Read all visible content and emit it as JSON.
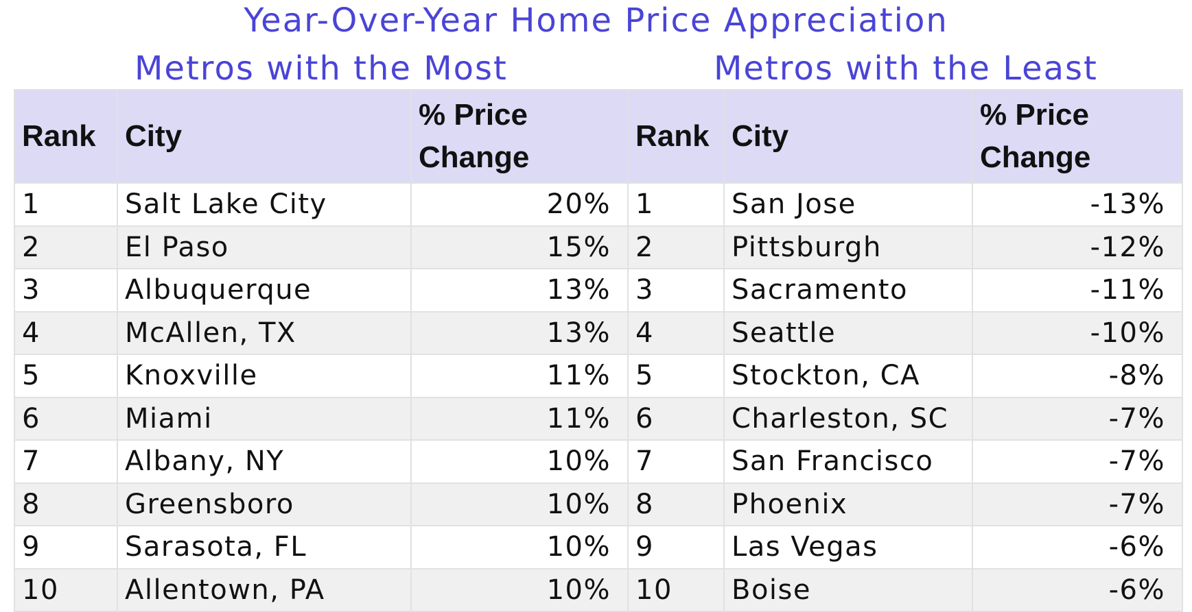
{
  "title": "Year-Over-Year Home Price Appreciation",
  "colors": {
    "title_text": "#4a44d6",
    "header_fill": "#dcdaf5",
    "row_alt_fill": "#f0f0f0",
    "grid": "#e1e1e1"
  },
  "chart_data": {
    "type": "table",
    "title": "Year-Over-Year Home Price Appreciation",
    "tables": [
      {
        "subtitle": "Metros with the Most",
        "columns": [
          "Rank",
          "City",
          "% Price Change"
        ],
        "rows": [
          [
            "1",
            "Salt Lake City",
            "20%"
          ],
          [
            "2",
            "El Paso",
            "15%"
          ],
          [
            "3",
            "Albuquerque",
            "13%"
          ],
          [
            "4",
            "McAllen, TX",
            "13%"
          ],
          [
            "5",
            "Knoxville",
            "11%"
          ],
          [
            "6",
            "Miami",
            "11%"
          ],
          [
            "7",
            "Albany, NY",
            "10%"
          ],
          [
            "8",
            "Greensboro",
            "10%"
          ],
          [
            "9",
            "Sarasota, FL",
            "10%"
          ],
          [
            "10",
            "Allentown, PA",
            "10%"
          ]
        ]
      },
      {
        "subtitle": "Metros with the Least",
        "columns": [
          "Rank",
          "City",
          "% Price Change"
        ],
        "rows": [
          [
            "1",
            "San Jose",
            "-13%"
          ],
          [
            "2",
            "Pittsburgh",
            "-12%"
          ],
          [
            "3",
            "Sacramento",
            "-11%"
          ],
          [
            "4",
            "Seattle",
            "-10%"
          ],
          [
            "5",
            "Stockton, CA",
            "-8%"
          ],
          [
            "6",
            "Charleston, SC",
            "-7%"
          ],
          [
            "7",
            "San Francisco",
            "-7%"
          ],
          [
            "8",
            "Phoenix",
            "-7%"
          ],
          [
            "9",
            "Las Vegas",
            "-6%"
          ],
          [
            "10",
            "Boise",
            "-6%"
          ]
        ]
      }
    ]
  }
}
